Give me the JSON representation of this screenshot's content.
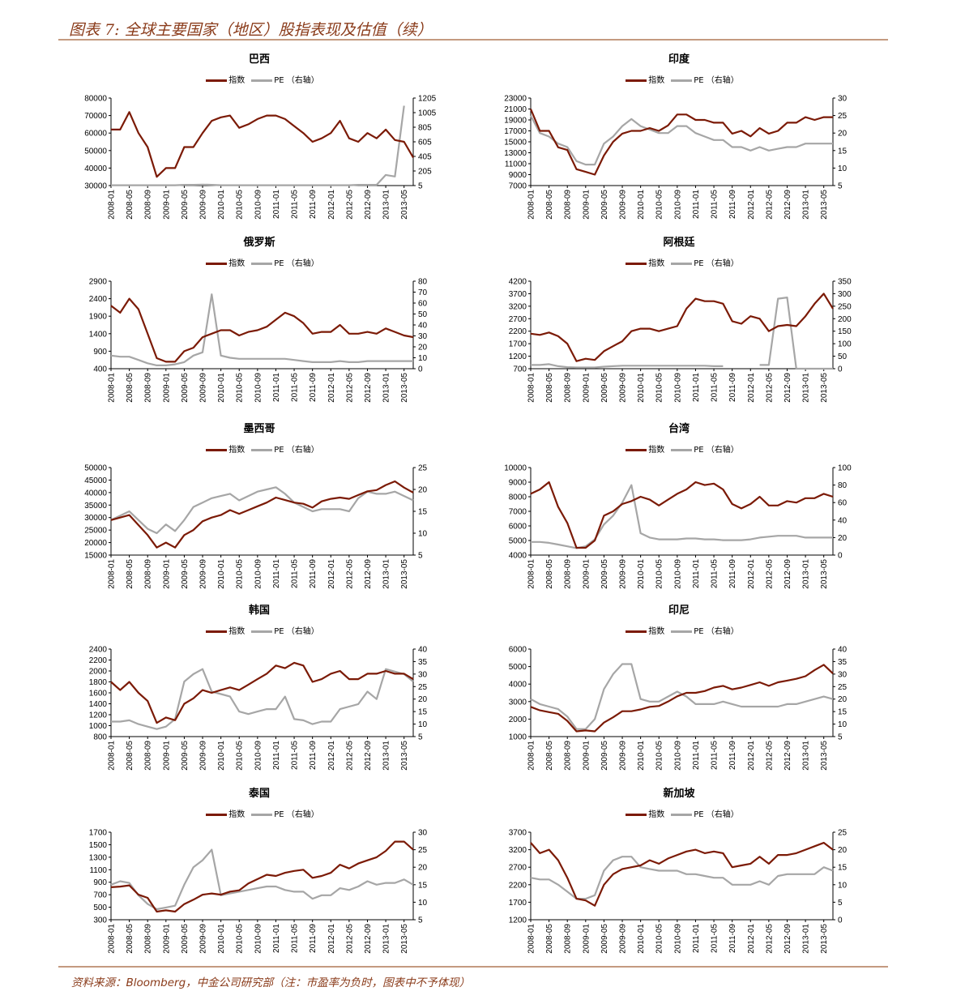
{
  "header": {
    "title": "图表 7:  全球主要国家（地区）股指表现及估值（续）"
  },
  "footer": {
    "source": "资料来源：Bloomberg，中金公司研究部（注：市盈率为负时，图表中不予体现）"
  },
  "legend": {
    "index": "指数",
    "pe": "PE （右轴）"
  },
  "colors": {
    "index": "#7b1a06",
    "pe": "#a6a6a6",
    "accent": "#8a3b1a"
  },
  "xticks": [
    "2008-01",
    "2008-05",
    "2008-09",
    "2009-01",
    "2009-05",
    "2009-09",
    "2010-01",
    "2010-05",
    "2010-09",
    "2011-01",
    "2011-05",
    "2011-09",
    "2012-01",
    "2012-05",
    "2012-09",
    "2013-01",
    "2013-05"
  ],
  "chart_data": [
    {
      "type": "line",
      "title": "巴西",
      "yleft": [
        30000,
        80000
      ],
      "yright": [
        5,
        1205
      ],
      "lticks": [
        "80000",
        "70000",
        "60000",
        "50000",
        "40000",
        "30000"
      ],
      "rticks": [
        "1205",
        "1005",
        "805",
        "605",
        "405",
        "205",
        "5"
      ],
      "index": [
        62000,
        62000,
        72000,
        60000,
        52000,
        35000,
        40000,
        40000,
        52000,
        52000,
        60000,
        67000,
        69000,
        70000,
        63000,
        65000,
        68000,
        70000,
        70000,
        68000,
        64000,
        60000,
        55000,
        57000,
        60000,
        67000,
        57000,
        55000,
        60000,
        57000,
        62000,
        56000,
        55000,
        46000
      ],
      "pe": [
        10,
        10,
        10,
        10,
        10,
        10,
        10,
        10,
        15,
        15,
        18,
        15,
        10,
        10,
        10,
        10,
        10,
        10,
        10,
        10,
        10,
        10,
        10,
        10,
        10,
        10,
        10,
        15,
        15,
        15,
        150,
        130,
        1100,
        null
      ]
    },
    {
      "type": "line",
      "title": "印度",
      "yleft": [
        7000,
        23000
      ],
      "yright": [
        5,
        30
      ],
      "lticks": [
        "23000",
        "21000",
        "19000",
        "17000",
        "15000",
        "13000",
        "11000",
        "9000",
        "7000"
      ],
      "rticks": [
        "30",
        "25",
        "20",
        "15",
        "10",
        "5"
      ],
      "index": [
        21000,
        17000,
        17000,
        14000,
        13500,
        10000,
        9500,
        9000,
        12500,
        15000,
        16500,
        17000,
        17000,
        17500,
        17000,
        18000,
        20000,
        20000,
        19000,
        19000,
        18500,
        18500,
        16500,
        17000,
        16000,
        17500,
        16500,
        17000,
        18500,
        18500,
        19500,
        19000,
        19500,
        19500
      ],
      "pe": [
        25,
        20,
        19,
        17,
        16,
        12,
        11,
        11,
        17,
        19,
        22,
        24,
        22,
        21,
        20,
        20,
        22,
        22,
        20,
        19,
        18,
        18,
        16,
        16,
        15,
        16,
        15,
        15.5,
        16,
        16,
        17,
        17,
        17,
        17
      ]
    },
    {
      "type": "line",
      "title": "俄罗斯",
      "yleft": [
        400,
        2900
      ],
      "yright": [
        0,
        80
      ],
      "lticks": [
        "2900",
        "2400",
        "1900",
        "1400",
        "900",
        "400"
      ],
      "rticks": [
        "80",
        "70",
        "60",
        "50",
        "40",
        "30",
        "20",
        "10",
        "0"
      ],
      "index": [
        2200,
        2000,
        2400,
        2100,
        1400,
        700,
        600,
        600,
        900,
        1000,
        1300,
        1400,
        1500,
        1500,
        1350,
        1450,
        1500,
        1600,
        1800,
        2000,
        1900,
        1700,
        1400,
        1450,
        1450,
        1650,
        1400,
        1400,
        1450,
        1400,
        1550,
        1450,
        1350,
        1300
      ],
      "pe": [
        12,
        11,
        11,
        8,
        5,
        3,
        3,
        4,
        6,
        12,
        15,
        68,
        12,
        10,
        9,
        9,
        9,
        9,
        9,
        9,
        8,
        7,
        6,
        6,
        6,
        7,
        6,
        6,
        7,
        7,
        7,
        7,
        7,
        7
      ]
    },
    {
      "type": "line",
      "title": "阿根廷",
      "yleft": [
        700,
        4200
      ],
      "yright": [
        0,
        350
      ],
      "lticks": [
        "4200",
        "3700",
        "3200",
        "2700",
        "2200",
        "1700",
        "1200",
        "700"
      ],
      "rticks": [
        "350",
        "300",
        "250",
        "200",
        "150",
        "100",
        "50",
        "0"
      ],
      "index": [
        2100,
        2050,
        2150,
        2000,
        1700,
        1000,
        1100,
        1050,
        1400,
        1600,
        1800,
        2200,
        2300,
        2300,
        2200,
        2300,
        2400,
        3100,
        3500,
        3400,
        3400,
        3300,
        2600,
        2500,
        2800,
        2700,
        2200,
        2400,
        2450,
        2400,
        2800,
        3300,
        3700,
        3100
      ],
      "pe": [
        15,
        15,
        18,
        10,
        6,
        5,
        5,
        5,
        8,
        10,
        12,
        12,
        12,
        12,
        12,
        12,
        12,
        12,
        12,
        12,
        10,
        10,
        null,
        null,
        null,
        15,
        15,
        280,
        285,
        0,
        0,
        0,
        0,
        0
      ]
    },
    {
      "type": "line",
      "title": "墨西哥",
      "yleft": [
        15000,
        50000
      ],
      "yright": [
        5,
        25
      ],
      "lticks": [
        "50000",
        "45000",
        "40000",
        "35000",
        "30000",
        "25000",
        "20000",
        "15000"
      ],
      "rticks": [
        "25",
        "20",
        "15",
        "10",
        "5"
      ],
      "index": [
        29000,
        30000,
        31000,
        27000,
        23000,
        18000,
        20000,
        18000,
        23000,
        25000,
        28500,
        30000,
        31000,
        33000,
        31500,
        33000,
        34500,
        36000,
        38000,
        37000,
        36000,
        35500,
        34000,
        36500,
        37500,
        38000,
        37500,
        39000,
        40500,
        41000,
        43000,
        44500,
        42000,
        40000
      ],
      "pe": [
        13,
        14,
        15,
        13,
        11,
        10,
        12,
        10.5,
        13,
        16,
        17,
        18,
        18.5,
        19,
        17.5,
        18.5,
        19.5,
        20,
        20.5,
        19,
        17,
        16,
        15,
        15.5,
        15.5,
        15.5,
        15,
        18,
        19.5,
        19,
        19,
        19.5,
        18.5,
        17.5
      ]
    },
    {
      "type": "line",
      "title": "台湾",
      "yleft": [
        4000,
        10000
      ],
      "yright": [
        0,
        100
      ],
      "lticks": [
        "10000",
        "9000",
        "8000",
        "7000",
        "6000",
        "5000",
        "4000"
      ],
      "rticks": [
        "100",
        "80",
        "60",
        "40",
        "20",
        "0"
      ],
      "index": [
        8200,
        8500,
        9000,
        7300,
        6200,
        4500,
        4500,
        5000,
        6700,
        7000,
        7500,
        7700,
        8000,
        7800,
        7400,
        7800,
        8200,
        8500,
        9000,
        8800,
        8900,
        8500,
        7500,
        7200,
        7500,
        8000,
        7400,
        7400,
        7700,
        7600,
        7900,
        7900,
        8200,
        8000
      ],
      "pe": [
        15,
        15,
        14,
        12,
        10,
        8,
        10,
        18,
        35,
        45,
        60,
        80,
        25,
        20,
        18,
        18,
        18,
        19,
        19,
        18,
        18,
        17,
        17,
        17,
        18,
        20,
        21,
        22,
        22,
        22,
        20,
        20,
        20,
        20
      ]
    },
    {
      "type": "line",
      "title": "韩国",
      "yleft": [
        800,
        2400
      ],
      "yright": [
        5,
        40
      ],
      "lticks": [
        "2400",
        "2200",
        "2000",
        "1800",
        "1600",
        "1400",
        "1200",
        "1000",
        "800"
      ],
      "rticks": [
        "40",
        "35",
        "30",
        "25",
        "20",
        "15",
        "10",
        "5"
      ],
      "index": [
        1800,
        1650,
        1800,
        1600,
        1450,
        1050,
        1150,
        1100,
        1400,
        1500,
        1650,
        1600,
        1650,
        1700,
        1650,
        1750,
        1850,
        1950,
        2100,
        2050,
        2150,
        2100,
        1800,
        1850,
        1950,
        2000,
        1850,
        1850,
        1950,
        1950,
        2000,
        1950,
        1950,
        1850
      ],
      "pe": [
        11,
        11,
        11.5,
        10,
        9,
        8,
        9,
        12,
        27,
        30,
        32,
        23,
        22,
        21,
        15,
        14,
        15,
        16,
        16,
        21,
        12,
        11.5,
        10,
        11,
        11,
        16,
        17,
        18,
        23,
        20,
        32,
        31,
        30,
        27
      ]
    },
    {
      "type": "line",
      "title": "印尼",
      "yleft": [
        1000,
        6000
      ],
      "yright": [
        5,
        40
      ],
      "lticks": [
        "6000",
        "5000",
        "4000",
        "3000",
        "2000",
        "1000"
      ],
      "rticks": [
        "40",
        "35",
        "30",
        "25",
        "20",
        "15",
        "10",
        "5"
      ],
      "index": [
        2700,
        2500,
        2400,
        2300,
        1900,
        1300,
        1350,
        1300,
        1800,
        2100,
        2450,
        2450,
        2550,
        2700,
        2750,
        3000,
        3300,
        3500,
        3500,
        3600,
        3800,
        3900,
        3700,
        3800,
        3950,
        4100,
        3900,
        4100,
        4200,
        4300,
        4450,
        4800,
        5100,
        4600
      ],
      "pe": [
        20,
        18,
        17,
        16,
        13,
        8,
        8,
        12,
        24,
        30,
        34,
        34,
        20,
        19,
        19,
        21,
        23,
        21,
        18,
        18,
        18,
        19,
        18,
        17,
        17,
        17,
        17,
        17,
        18,
        18,
        19,
        20,
        21,
        20
      ]
    },
    {
      "type": "line",
      "title": "泰国",
      "yleft": [
        300,
        1700
      ],
      "yright": [
        5,
        30
      ],
      "lticks": [
        "1700",
        "1500",
        "1300",
        "1100",
        "900",
        "700",
        "500",
        "300"
      ],
      "rticks": [
        "30",
        "25",
        "20",
        "15",
        "10",
        "5"
      ],
      "index": [
        820,
        830,
        850,
        700,
        650,
        430,
        450,
        430,
        550,
        620,
        700,
        720,
        700,
        750,
        770,
        880,
        950,
        1020,
        1000,
        1050,
        1080,
        1100,
        970,
        1000,
        1050,
        1180,
        1120,
        1200,
        1250,
        1300,
        1400,
        1550,
        1550,
        1420
      ],
      "pe": [
        15,
        16,
        15.5,
        12,
        9.5,
        8,
        8.5,
        9,
        15,
        20,
        22,
        25,
        12,
        12.5,
        13,
        13.5,
        14,
        14.5,
        14.5,
        13.5,
        13,
        13,
        11,
        12,
        12,
        14,
        13.5,
        14.5,
        16,
        15,
        15.5,
        15.5,
        16.5,
        15
      ]
    },
    {
      "type": "line",
      "title": "新加坡",
      "yleft": [
        1200,
        3700
      ],
      "yright": [
        0,
        25
      ],
      "lticks": [
        "3700",
        "3200",
        "2700",
        "2200",
        "1700",
        "1200"
      ],
      "rticks": [
        "25",
        "20",
        "15",
        "10",
        "5",
        "0"
      ],
      "index": [
        3400,
        3100,
        3200,
        2900,
        2400,
        1800,
        1750,
        1600,
        2200,
        2500,
        2650,
        2700,
        2750,
        2900,
        2800,
        2950,
        3050,
        3150,
        3200,
        3100,
        3150,
        3100,
        2700,
        2750,
        2800,
        3000,
        2800,
        3050,
        3050,
        3100,
        3200,
        3300,
        3400,
        3200
      ],
      "pe": [
        12,
        11.5,
        11.5,
        10,
        8,
        6,
        6,
        7,
        14,
        17,
        18,
        18,
        15,
        14.5,
        14,
        14,
        14,
        13,
        13,
        12.5,
        12,
        12,
        10,
        10,
        10,
        11,
        10,
        12.5,
        13,
        13,
        13,
        13,
        15,
        14
      ]
    }
  ]
}
